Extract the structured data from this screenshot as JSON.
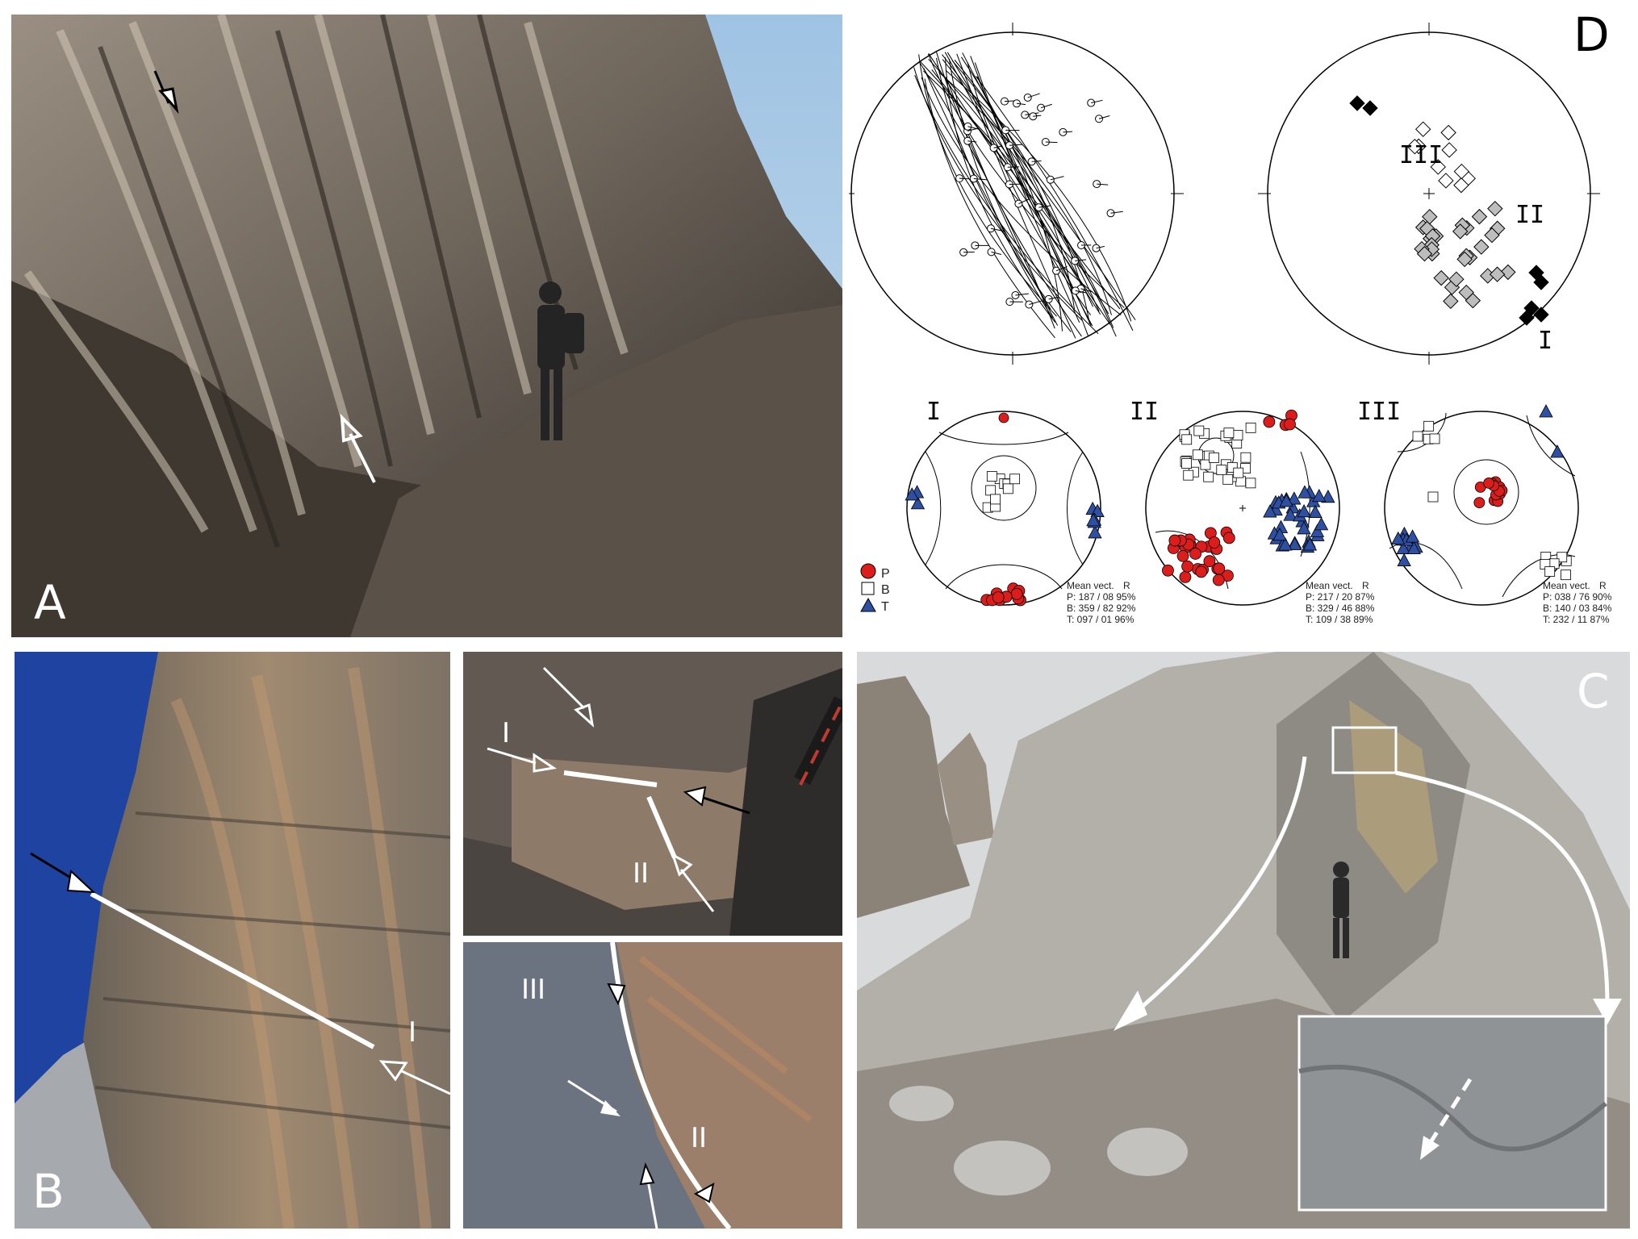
{
  "panels": {
    "a": {
      "label": "A"
    },
    "b": {
      "label": "B",
      "main_fault": "I"
    },
    "b_detail_top": {
      "fault1": "I",
      "fault2": "II"
    },
    "b_detail_bottom": {
      "fault3": "III",
      "fault2": "II"
    },
    "c": {
      "label": "C"
    },
    "d": {
      "label": "D"
    }
  },
  "stereonets": {
    "group_labels": {
      "i": "I",
      "ii": "II",
      "iii": "III"
    },
    "legend": [
      {
        "symbol": "P",
        "shape": "circle",
        "color": "#dd1c1c"
      },
      {
        "symbol": "B",
        "shape": "square",
        "color": "#ffffff"
      },
      {
        "symbol": "T",
        "shape": "triangle",
        "color": "#2e4fa2"
      }
    ],
    "mean_vectors": [
      {
        "group": "I",
        "header_left": "Mean vect.",
        "header_right": "R",
        "rows": [
          "P: 187 / 08  95%",
          "B: 359 / 82  92%",
          "T: 097 / 01  96%"
        ]
      },
      {
        "group": "II",
        "header_left": "Mean vect.",
        "header_right": "R",
        "rows": [
          "P: 217 / 20  87%",
          "B: 329 / 46  88%",
          "T: 109 / 38  89%"
        ]
      },
      {
        "group": "III",
        "header_left": "Mean vect.",
        "header_right": "R",
        "rows": [
          "P: 038 / 76  90%",
          "B: 140 / 03  84%",
          "T: 232 / 11  87%"
        ]
      }
    ]
  },
  "colors": {
    "p_axis": "#dd1c1c",
    "t_axis": "#2e4fa2",
    "rock": "#8a7f72",
    "sky": "#1c3f9a"
  }
}
